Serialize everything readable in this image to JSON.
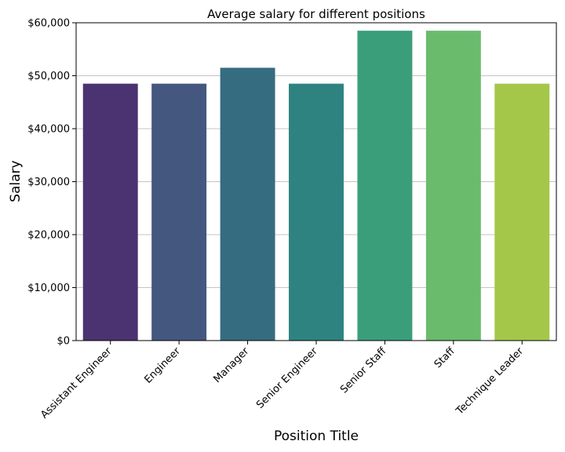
{
  "chart_data": {
    "type": "bar",
    "title": "Average salary for different positions",
    "xlabel": "Position Title",
    "ylabel": "Salary",
    "categories": [
      "Assistant Engineer",
      "Engineer",
      "Manager",
      "Senior Engineer",
      "Senior Staff",
      "Staff",
      "Technique Leader"
    ],
    "values": [
      48500,
      48500,
      51500,
      48500,
      58500,
      58500,
      48500
    ],
    "ylim": [
      0,
      60000
    ],
    "yticks": [
      0,
      10000,
      20000,
      30000,
      40000,
      50000,
      60000
    ],
    "ytick_labels": [
      "$0",
      "$10,000",
      "$20,000",
      "$30,000",
      "$40,000",
      "$50,000",
      "$60,000"
    ],
    "grid": "horizontal",
    "colors": [
      "#4a3370",
      "#44577f",
      "#366c80",
      "#2e8380",
      "#3a9e7a",
      "#6bbb6d",
      "#a4c74a"
    ]
  }
}
